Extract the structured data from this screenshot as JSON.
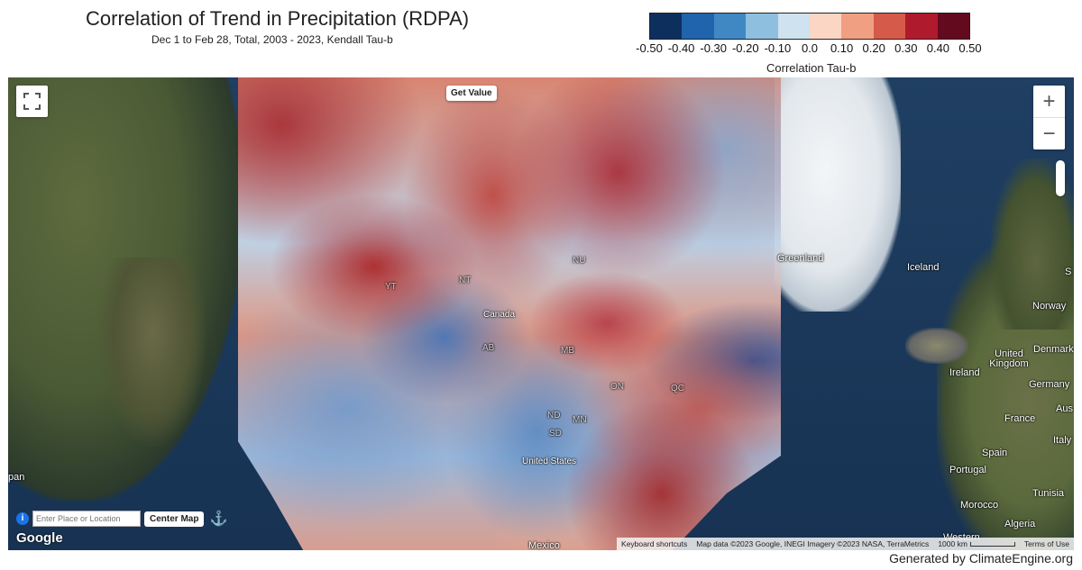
{
  "title": "Correlation of Trend in Precipitation (RDPA)",
  "subtitle": "Dec 1 to Feb 28, Total, 2003 - 2023, Kendall Tau-b",
  "legend": {
    "colors": [
      "#0d2f5e",
      "#2064ad",
      "#3f88c4",
      "#8fbfdf",
      "#cfe2ef",
      "#fbd6c5",
      "#f09f83",
      "#d65a4a",
      "#af1a2c",
      "#640a1f"
    ],
    "ticks": [
      "-0.50",
      "-0.40",
      "-0.30",
      "-0.20",
      "-0.10",
      "0.0",
      "0.10",
      "0.20",
      "0.30",
      "0.40",
      "0.50"
    ],
    "label": "Correlation Tau-b"
  },
  "map": {
    "get_value_label": "Get Value",
    "labels": {
      "canada": "Canada",
      "united_states": "United States",
      "greenland": "Greenland",
      "iceland": "Iceland",
      "norway": "Norway",
      "united_kingdom": "United Kingdom",
      "ireland": "Ireland",
      "denmark": "Denmark",
      "germany": "Germany",
      "france": "France",
      "spain": "Spain",
      "portugal": "Portugal",
      "italy": "Italy",
      "morocco": "Morocco",
      "algeria": "Algeria",
      "tunisia": "Tunisia",
      "western": "Western",
      "mexico": "Mexico",
      "japan_partial": "pan",
      "aus_partial": "Aus",
      "s_partial": "S",
      "nu": "NU",
      "nt": "NT",
      "yt": "YT",
      "ab": "AB",
      "mb": "MB",
      "on": "ON",
      "qc": "QC",
      "nd": "ND",
      "mn": "MN",
      "sd": "SD"
    },
    "search_placeholder": "Enter Place or Location",
    "center_map_label": "Center Map",
    "google_logo": "Google",
    "attribution": {
      "shortcuts": "Keyboard shortcuts",
      "data": "Map data ©2023 Google, INEGI Imagery ©2023 NASA, TerraMetrics",
      "scale": "1000 km",
      "terms": "Terms of Use"
    }
  },
  "footer": "Generated by ClimateEngine.org"
}
